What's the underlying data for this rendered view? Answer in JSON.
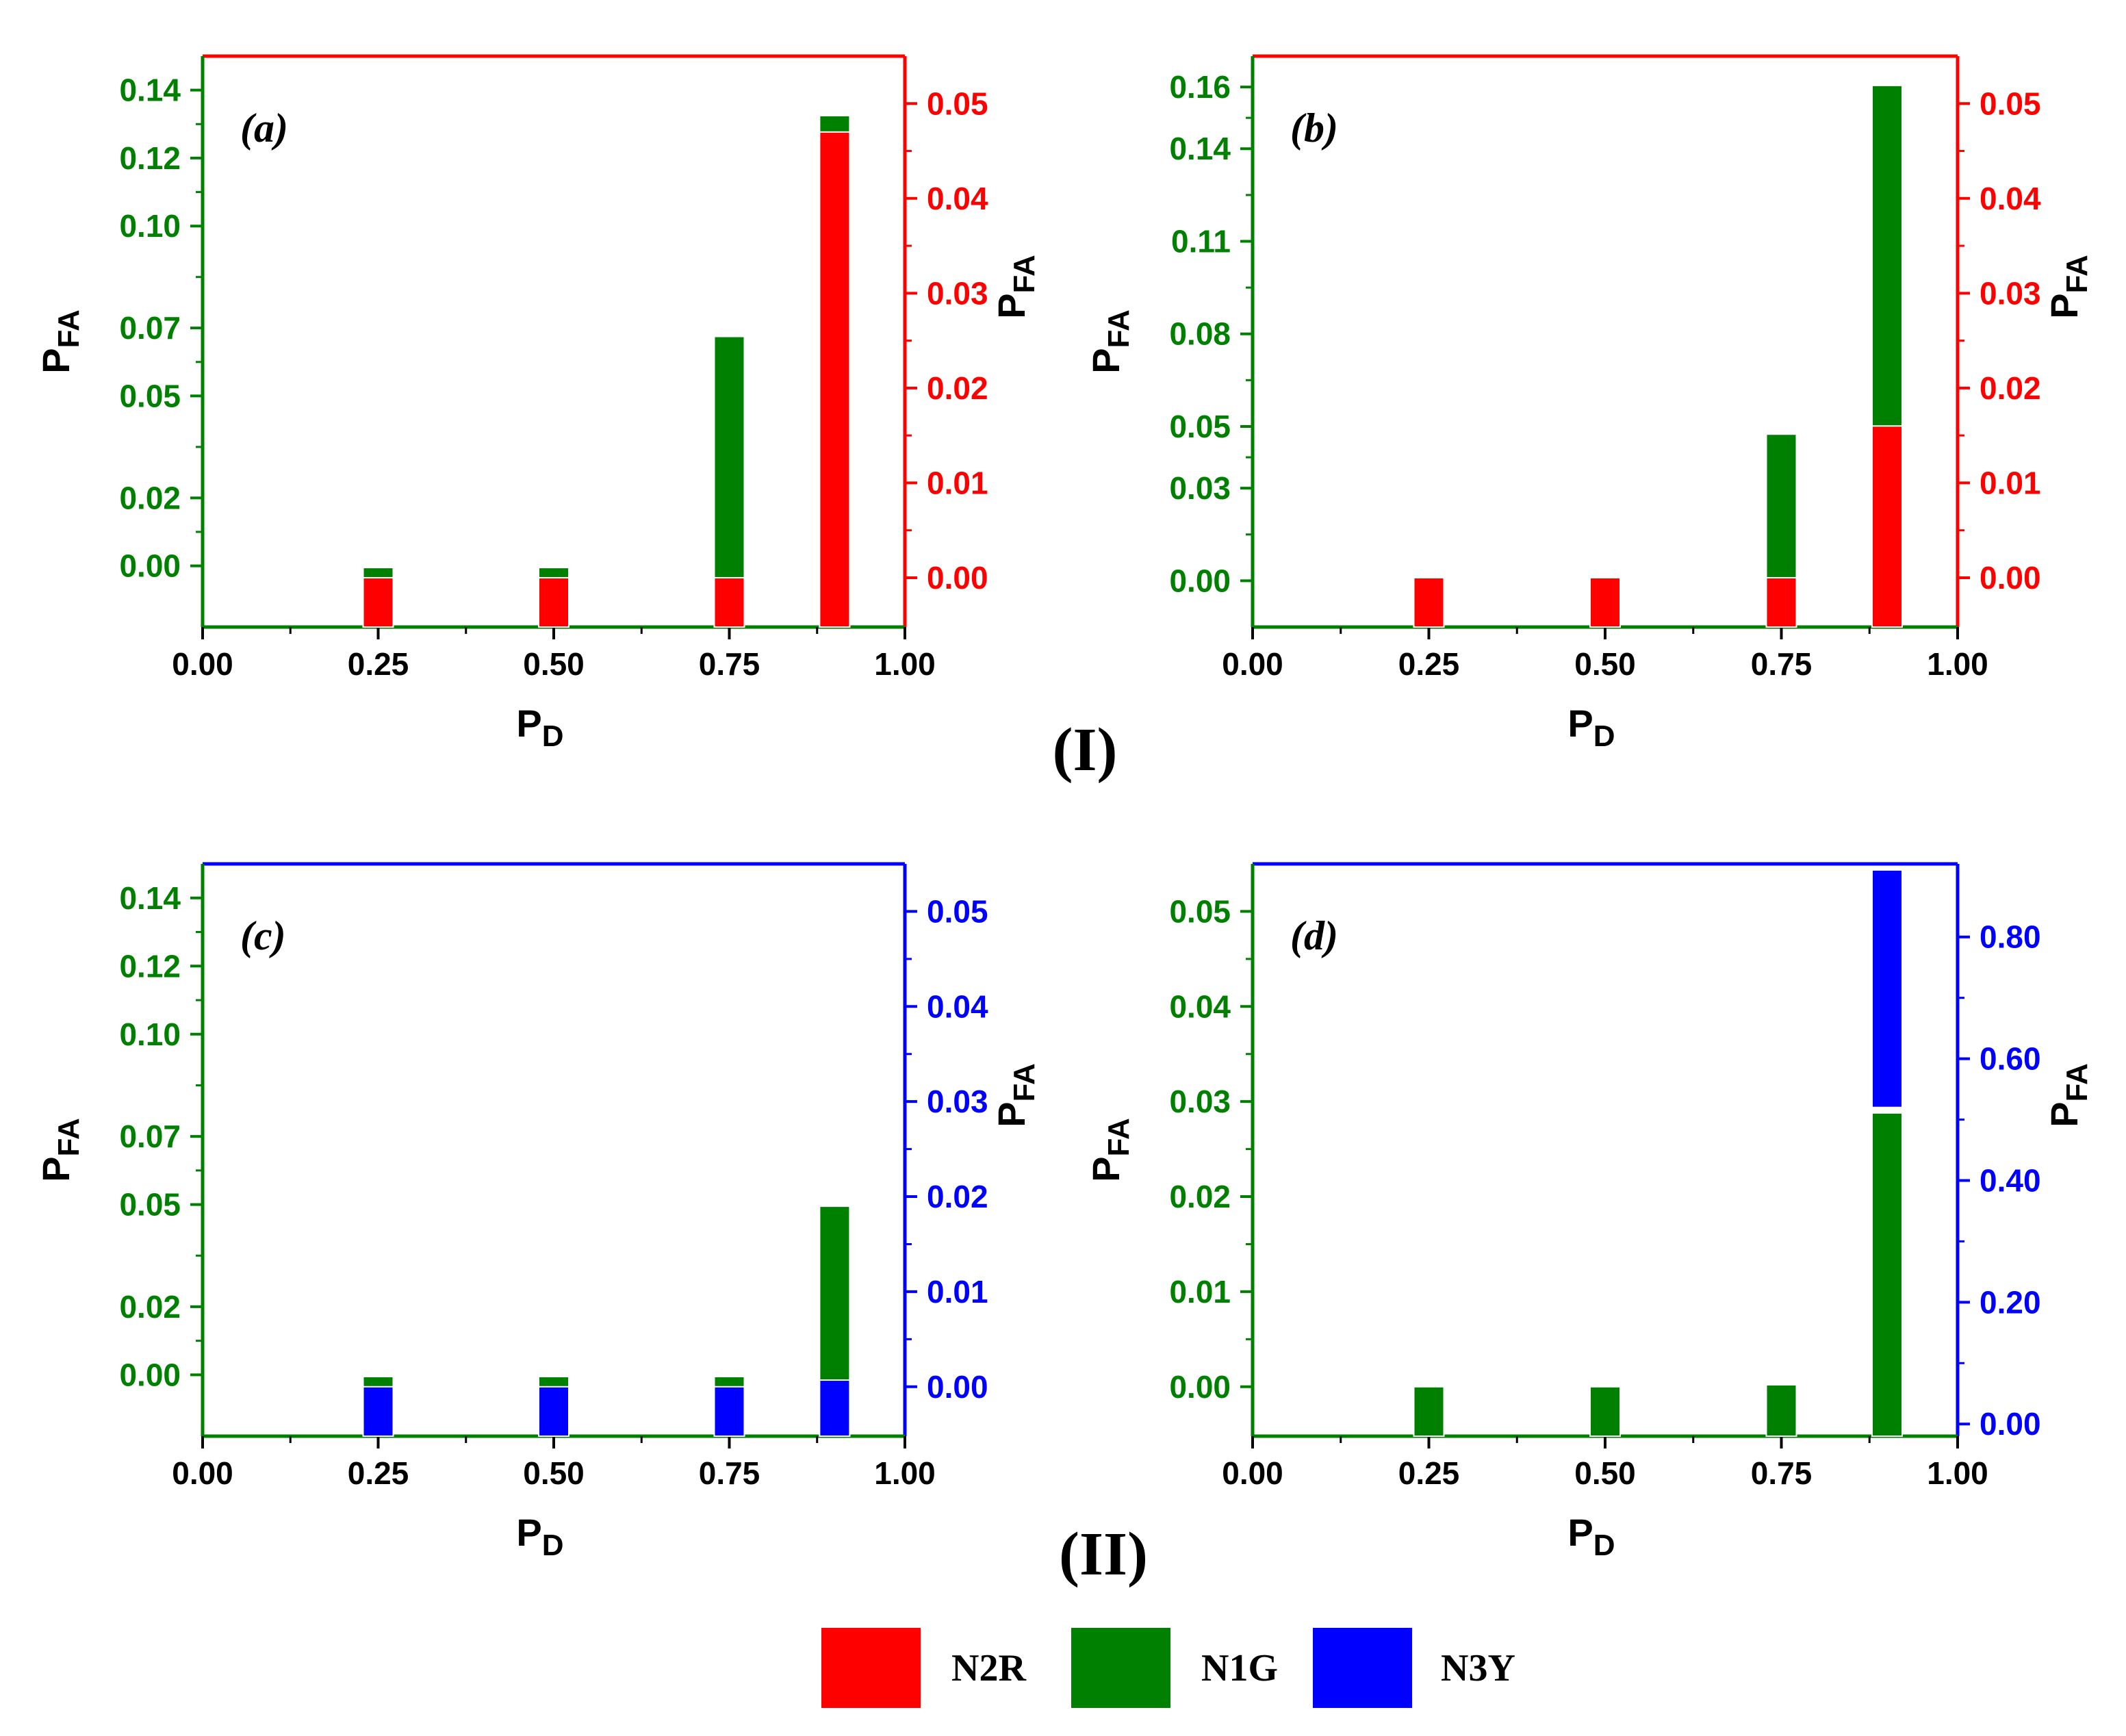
{
  "figure": {
    "group_labels": [
      {
        "text": "(I)",
        "x_anchor": "between-a-b"
      },
      {
        "text": "(II)",
        "x_anchor": "between-c-d"
      }
    ],
    "legend": [
      {
        "label": "N2R",
        "color": "#ff0000"
      },
      {
        "label": "N1G",
        "color": "#008000"
      },
      {
        "label": "N3Y",
        "color": "#0000ff"
      }
    ]
  },
  "colors": {
    "green": "#008000",
    "red": "#ff0000",
    "blue": "#0000ff",
    "axis": "#000000"
  },
  "chart_data": [
    {
      "id": "a",
      "panel_label": "(a)",
      "type": "bar",
      "stacked_overlay": true,
      "secondary_axis_color": "red",
      "x": {
        "title": "P",
        "sub": "D",
        "ticks": [
          "0.00",
          "0.25",
          "0.50",
          "0.75",
          "1.00"
        ],
        "range": [
          0,
          1
        ]
      },
      "y_left": {
        "title": "P",
        "sub": "FA",
        "ticks": [
          0.0,
          0.02,
          0.05,
          0.07,
          0.1,
          0.12,
          0.14
        ],
        "tick_labels": [
          "0.00",
          "0.02",
          "0.05",
          "0.07",
          "0.10",
          "0.12",
          "0.14"
        ],
        "range": [
          -0.018,
          0.15
        ]
      },
      "y_right": {
        "title": "P",
        "sub": "FA",
        "ticks": [
          0.0,
          0.01,
          0.02,
          0.03,
          0.04,
          0.05
        ],
        "tick_labels": [
          "0.00",
          "0.01",
          "0.02",
          "0.03",
          "0.04",
          "0.05"
        ],
        "range": [
          -0.0052,
          0.055
        ]
      },
      "categories": [
        0.25,
        0.5,
        0.75,
        0.9
      ],
      "series": [
        {
          "name": "N1G",
          "axis": "left",
          "color": "green",
          "values": [
            -0.0005,
            -0.0005,
            0.0675,
            0.1325
          ]
        },
        {
          "name": "N2R",
          "axis": "right",
          "color": "red",
          "values": [
            0.0,
            0.0,
            0.0,
            0.047
          ]
        }
      ]
    },
    {
      "id": "b",
      "panel_label": "(b)",
      "type": "bar",
      "stacked_overlay": true,
      "secondary_axis_color": "red",
      "x": {
        "title": "P",
        "sub": "D",
        "ticks": [
          "0.00",
          "0.25",
          "0.50",
          "0.75",
          "1.00"
        ],
        "range": [
          0,
          1
        ]
      },
      "y_left": {
        "title": "P",
        "sub": "FA",
        "ticks": [
          0.0,
          0.03,
          0.05,
          0.08,
          0.11,
          0.14,
          0.16
        ],
        "tick_labels": [
          "0.00",
          "0.03",
          "0.05",
          "0.08",
          "0.11",
          "0.14",
          "0.16"
        ],
        "range": [
          -0.015,
          0.17
        ]
      },
      "y_right": {
        "title": "P",
        "sub": "FA",
        "ticks": [
          0.0,
          0.01,
          0.02,
          0.03,
          0.04,
          0.05
        ],
        "tick_labels": [
          "0.00",
          "0.01",
          "0.02",
          "0.03",
          "0.04",
          "0.05"
        ],
        "range": [
          -0.0052,
          0.055
        ]
      },
      "categories": [
        0.25,
        0.5,
        0.75,
        0.9
      ],
      "series": [
        {
          "name": "N1G",
          "axis": "left",
          "color": "green",
          "values": [
            0.0,
            0.001,
            0.0475,
            0.1605
          ]
        },
        {
          "name": "N2R",
          "axis": "right",
          "color": "red",
          "values": [
            0.0,
            0.0,
            0.0,
            0.016
          ]
        }
      ]
    },
    {
      "id": "c",
      "panel_label": "(c)",
      "type": "bar",
      "stacked_overlay": true,
      "secondary_axis_color": "blue",
      "x": {
        "title": "P",
        "sub": "D",
        "ticks": [
          "0.00",
          "0.25",
          "0.50",
          "0.75",
          "1.00"
        ],
        "range": [
          0,
          1
        ]
      },
      "y_left": {
        "title": "P",
        "sub": "FA",
        "ticks": [
          0.0,
          0.02,
          0.05,
          0.07,
          0.1,
          0.12,
          0.14
        ],
        "tick_labels": [
          "0.00",
          "0.02",
          "0.05",
          "0.07",
          "0.10",
          "0.12",
          "0.14"
        ],
        "range": [
          -0.018,
          0.15
        ]
      },
      "y_right": {
        "title": "P",
        "sub": "FA",
        "ticks": [
          0.0,
          0.01,
          0.02,
          0.03,
          0.04,
          0.05
        ],
        "tick_labels": [
          "0.00",
          "0.01",
          "0.02",
          "0.03",
          "0.04",
          "0.05"
        ],
        "range": [
          -0.0052,
          0.055
        ]
      },
      "categories": [
        0.25,
        0.5,
        0.75,
        0.9
      ],
      "series": [
        {
          "name": "N1G",
          "axis": "left",
          "color": "green",
          "values": [
            -0.0005,
            -0.0005,
            -0.0005,
            0.0495
          ]
        },
        {
          "name": "N3Y",
          "axis": "right",
          "color": "blue",
          "values": [
            0.0,
            0.0,
            0.0,
            0.0007
          ]
        }
      ]
    },
    {
      "id": "d",
      "panel_label": "(d)",
      "type": "bar",
      "stacked_overlay": true,
      "secondary_axis_color": "blue",
      "x": {
        "title": "P",
        "sub": "D",
        "ticks": [
          "0.00",
          "0.25",
          "0.50",
          "0.75",
          "1.00"
        ],
        "range": [
          0,
          1
        ]
      },
      "y_left": {
        "title": "P",
        "sub": "FA",
        "ticks": [
          0.0,
          0.01,
          0.02,
          0.03,
          0.04,
          0.05
        ],
        "tick_labels": [
          "0.00",
          "0.01",
          "0.02",
          "0.03",
          "0.04",
          "0.05"
        ],
        "range": [
          -0.0052,
          0.055
        ]
      },
      "y_right": {
        "title": "P",
        "sub": "FA",
        "ticks": [
          0.0,
          0.2,
          0.4,
          0.6,
          0.8
        ],
        "tick_labels": [
          "0.00",
          "0.20",
          "0.40",
          "0.60",
          "0.80"
        ],
        "range": [
          -0.02,
          0.92
        ]
      },
      "categories": [
        0.25,
        0.5,
        0.75,
        0.9
      ],
      "series": [
        {
          "name": "N1G",
          "axis": "left",
          "color": "green",
          "values": [
            0.0,
            0.0,
            0.0002,
            0.0288
          ]
        },
        {
          "name": "N3Y",
          "axis": "right",
          "color": "blue",
          "values": [
            null,
            null,
            null,
            0.91
          ]
        },
        {
          "name": "N3Y-base",
          "axis": "right",
          "color": "blue",
          "values": [
            null,
            null,
            null,
            0.52
          ],
          "role": "base"
        }
      ]
    }
  ]
}
